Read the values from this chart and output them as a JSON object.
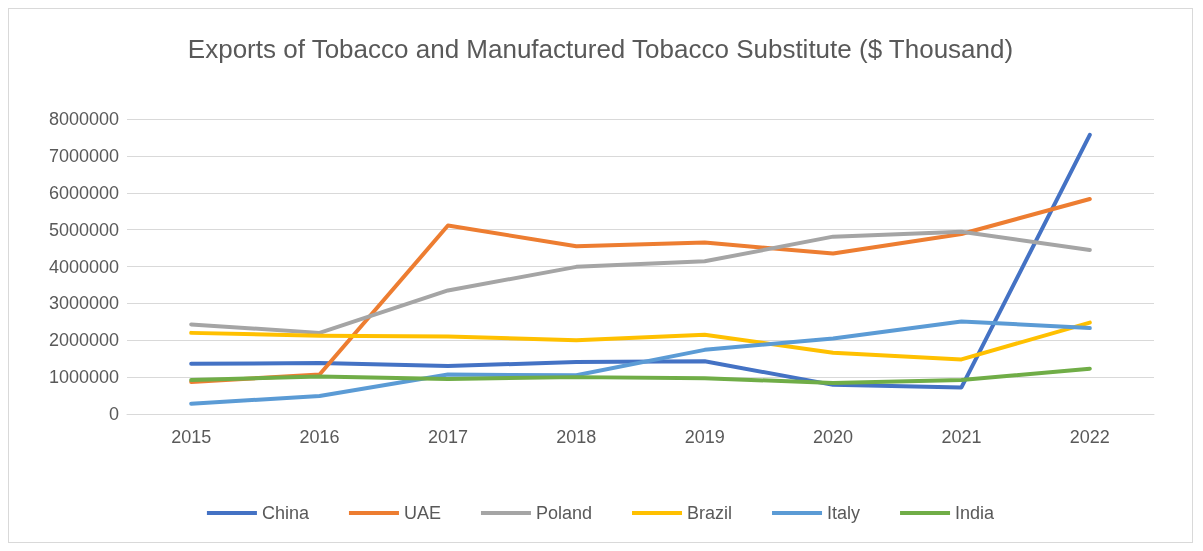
{
  "chart_data": {
    "type": "line",
    "title": "Exports of Tobacco and Manufactured Tobacco Substitute ($ Thousand)",
    "categories": [
      "2015",
      "2016",
      "2017",
      "2018",
      "2019",
      "2020",
      "2021",
      "2022"
    ],
    "series": [
      {
        "name": "China",
        "color": "#4472c4",
        "values": [
          1360000,
          1380000,
          1300000,
          1410000,
          1430000,
          790000,
          720000,
          7570000
        ]
      },
      {
        "name": "UAE",
        "color": "#ed7d31",
        "values": [
          870000,
          1070000,
          5110000,
          4550000,
          4650000,
          4350000,
          4880000,
          5830000
        ]
      },
      {
        "name": "Poland",
        "color": "#a5a5a5",
        "values": [
          2430000,
          2200000,
          3350000,
          3990000,
          4140000,
          4810000,
          4940000,
          4450000
        ]
      },
      {
        "name": "Brazil",
        "color": "#ffc000",
        "values": [
          2200000,
          2120000,
          2100000,
          2000000,
          2150000,
          1660000,
          1480000,
          2480000
        ]
      },
      {
        "name": "Italy",
        "color": "#5b9bd5",
        "values": [
          280000,
          490000,
          1070000,
          1050000,
          1740000,
          2050000,
          2510000,
          2330000
        ]
      },
      {
        "name": "India",
        "color": "#70ad47",
        "values": [
          920000,
          1020000,
          950000,
          1000000,
          970000,
          840000,
          920000,
          1230000
        ]
      }
    ],
    "ylim": [
      0,
      8000000
    ],
    "yticks": [
      0,
      1000000,
      2000000,
      3000000,
      4000000,
      5000000,
      6000000,
      7000000,
      8000000
    ],
    "grid": "y",
    "legend": "bottom",
    "marker": "none",
    "line_style": "solid"
  }
}
